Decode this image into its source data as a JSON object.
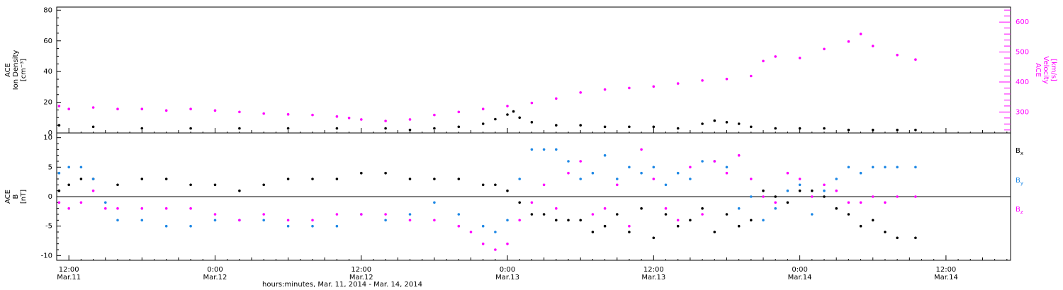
{
  "figure": {
    "xlabel": "hours:minutes, Mar. 11, 2014 - Mar. 14, 2014",
    "x_ticks": [
      {
        "hour": 12,
        "time": "12:00",
        "date": "Mar.11"
      },
      {
        "hour": 24,
        "time": "0:00",
        "date": "Mar.12"
      },
      {
        "hour": 36,
        "time": "12:00",
        "date": "Mar.12"
      },
      {
        "hour": 48,
        "time": "0:00",
        "date": "Mar.13"
      },
      {
        "hour": 60,
        "time": "12:00",
        "date": "Mar.13"
      },
      {
        "hour": 72,
        "time": "0:00",
        "date": "Mar.14"
      },
      {
        "hour": 84,
        "time": "12:00",
        "date": "Mar.14"
      }
    ],
    "x_range_hours": [
      11.0,
      89.3
    ],
    "colors": {
      "black": "#000000",
      "magenta": "#ff00ff",
      "blue": "#1e88e5"
    }
  },
  "chart_data": [
    {
      "type": "scatter",
      "panel": "top",
      "ylabel_left": [
        "ACE",
        "Ion Density",
        "[cm⁻³]"
      ],
      "ylabel_right": [
        "ACE",
        "Velocity",
        "[km/s]"
      ],
      "ylim_left": [
        0,
        82
      ],
      "ylim_right": [
        230,
        650
      ],
      "yticks_left": [
        0,
        20,
        40,
        60,
        80
      ],
      "yticks_right": [
        300,
        400,
        500,
        600
      ],
      "series": [
        {
          "axis": "left",
          "color": "#000000",
          "x": [
            11.2,
            14,
            18,
            22,
            26,
            30,
            34,
            38,
            40,
            42,
            44,
            46,
            47,
            48,
            48.5,
            49,
            50,
            52,
            54,
            56,
            58,
            60,
            62,
            64,
            65,
            66,
            67,
            68,
            70,
            72,
            74,
            76,
            78,
            80,
            81.5
          ],
          "y": [
            5,
            4,
            3,
            3,
            3,
            3,
            3,
            3,
            2,
            3,
            4,
            6,
            9,
            12,
            14,
            10,
            7,
            5,
            5,
            4,
            4,
            4,
            3,
            6,
            8,
            7,
            6,
            4,
            3,
            3,
            3,
            2,
            2,
            2,
            2
          ]
        },
        {
          "axis": "right",
          "color": "#ff00ff",
          "x": [
            11.2,
            12,
            14,
            16,
            18,
            20,
            22,
            24,
            26,
            28,
            30,
            32,
            34,
            35,
            36,
            38,
            40,
            42,
            44,
            46,
            48,
            50,
            52,
            54,
            56,
            58,
            60,
            62,
            64,
            66,
            68,
            69,
            70,
            72,
            74,
            76,
            77,
            78,
            80,
            81.5
          ],
          "y": [
            320,
            310,
            315,
            310,
            310,
            305,
            310,
            305,
            300,
            295,
            292,
            290,
            285,
            280,
            275,
            270,
            275,
            290,
            300,
            310,
            320,
            330,
            345,
            365,
            375,
            380,
            385,
            395,
            405,
            410,
            420,
            470,
            485,
            480,
            510,
            535,
            560,
            520,
            490,
            475
          ]
        }
      ]
    },
    {
      "type": "scatter",
      "panel": "bottom",
      "ylabel": [
        "ACE",
        "B",
        "[nT]"
      ],
      "ylim": [
        -10.8,
        10.8
      ],
      "yticks": [
        -10,
        -5,
        0,
        5,
        10
      ],
      "legend": [
        {
          "label": "B",
          "sub": "x",
          "color": "#000000"
        },
        {
          "label": "B",
          "sub": "y",
          "color": "#1e88e5"
        },
        {
          "label": "B",
          "sub": "z",
          "color": "#ff00ff"
        }
      ],
      "series": [
        {
          "name": "Bx",
          "color": "#000000",
          "x": [
            11.2,
            12,
            13,
            14,
            16,
            18,
            20,
            22,
            24,
            26,
            28,
            30,
            32,
            34,
            36,
            38,
            40,
            42,
            44,
            46,
            47,
            48,
            49,
            50,
            51,
            52,
            53,
            54,
            55,
            56,
            57,
            58,
            59,
            60,
            61,
            62,
            63,
            64,
            65,
            66,
            67,
            68,
            69,
            70,
            71,
            72,
            73,
            74,
            75,
            76,
            77,
            78,
            79,
            80,
            81.5
          ],
          "y": [
            1,
            2,
            3,
            3,
            2,
            3,
            3,
            2,
            2,
            1,
            2,
            3,
            3,
            3,
            4,
            4,
            3,
            3,
            3,
            2,
            2,
            1,
            -1,
            -3,
            -3,
            -4,
            -4,
            -4,
            -6,
            -5,
            -3,
            -6,
            -2,
            -7,
            -3,
            -5,
            -4,
            -2,
            -6,
            -3,
            -5,
            -4,
            1,
            0,
            -1,
            1,
            1,
            0,
            -2,
            -3,
            -5,
            -4,
            -6,
            -7,
            -7
          ]
        },
        {
          "name": "By",
          "color": "#1e88e5",
          "x": [
            11.2,
            12,
            13,
            14,
            15,
            16,
            18,
            20,
            22,
            24,
            26,
            28,
            30,
            32,
            34,
            36,
            38,
            40,
            42,
            44,
            46,
            47,
            48,
            49,
            50,
            51,
            52,
            53,
            54,
            55,
            56,
            57,
            58,
            59,
            60,
            61,
            62,
            63,
            64,
            65,
            66,
            67,
            68,
            69,
            70,
            71,
            72,
            73,
            74,
            75,
            76,
            77,
            78,
            79,
            80,
            81.5
          ],
          "y": [
            4,
            5,
            5,
            3,
            -1,
            -4,
            -4,
            -5,
            -5,
            -4,
            -4,
            -4,
            -5,
            -5,
            -5,
            -3,
            -4,
            -3,
            -1,
            -3,
            -5,
            -6,
            -4,
            3,
            8,
            8,
            8,
            6,
            3,
            4,
            7,
            3,
            5,
            4,
            5,
            2,
            4,
            3,
            6,
            6,
            5,
            -2,
            0,
            -4,
            -2,
            1,
            2,
            -3,
            1,
            3,
            5,
            4,
            5,
            5,
            5,
            5
          ]
        },
        {
          "name": "Bz",
          "color": "#ff00ff",
          "x": [
            11.2,
            12,
            13,
            14,
            15,
            16,
            18,
            20,
            22,
            24,
            26,
            28,
            30,
            32,
            34,
            36,
            38,
            40,
            42,
            44,
            45,
            46,
            47,
            48,
            49,
            50,
            51,
            52,
            53,
            54,
            55,
            56,
            57,
            58,
            59,
            60,
            61,
            62,
            63,
            64,
            65,
            66,
            67,
            68,
            69,
            70,
            71,
            72,
            73,
            74,
            75,
            76,
            77,
            78,
            79,
            80,
            81.5
          ],
          "y": [
            -1,
            -2,
            -1,
            1,
            -2,
            -2,
            -2,
            -2,
            -2,
            -3,
            -4,
            -3,
            -4,
            -4,
            -3,
            -3,
            -3,
            -4,
            -4,
            -5,
            -6,
            -8,
            -9,
            -8,
            -4,
            -1,
            2,
            -2,
            4,
            6,
            -3,
            -2,
            2,
            -5,
            8,
            3,
            -2,
            -4,
            5,
            -3,
            6,
            4,
            7,
            3,
            0,
            -1,
            4,
            3,
            0,
            2,
            1,
            -1,
            -1,
            0,
            -1,
            0,
            0
          ]
        }
      ]
    }
  ]
}
